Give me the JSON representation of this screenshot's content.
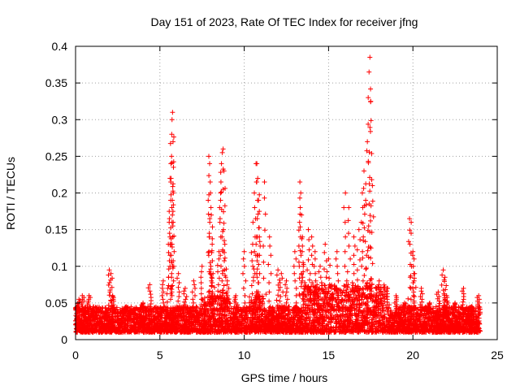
{
  "chart_data": {
    "type": "scatter",
    "title": "Day 151 of 2023, Rate Of TEC Index for receiver jfng",
    "xlabel": "GPS time / hours",
    "ylabel": "ROTI / TECUs",
    "xlim": [
      0,
      25
    ],
    "ylim": [
      0,
      0.4
    ],
    "x_ticks": [
      0,
      5,
      10,
      15,
      20,
      25
    ],
    "x_tick_labels": [
      "0",
      "5",
      "10",
      "15",
      "20",
      "25"
    ],
    "y_ticks": [
      0,
      0.05,
      0.1,
      0.15,
      0.2,
      0.25,
      0.3,
      0.35,
      0.4
    ],
    "y_tick_labels": [
      "0",
      "0.05",
      "0.1",
      "0.15",
      "0.2",
      "0.25",
      "0.3",
      "0.35",
      "0.4"
    ],
    "grid": true,
    "marker": "+",
    "marker_color": "#ff0000",
    "series": [
      {
        "name": "ROTI",
        "x": [
          0.1,
          0.2,
          0.3,
          0.4,
          0.5,
          0.8,
          1.0,
          2.0,
          2.1,
          2.2,
          3.0,
          4.0,
          4.4,
          5.2,
          5.5,
          5.55,
          5.6,
          5.65,
          5.7,
          5.72,
          5.75,
          5.78,
          5.8,
          6.1,
          6.5,
          7.0,
          7.5,
          7.9,
          7.95,
          8.0,
          8.05,
          8.1,
          8.15,
          8.5,
          8.6,
          8.65,
          8.7,
          8.75,
          8.8,
          8.85,
          9.0,
          9.5,
          10.0,
          10.5,
          10.6,
          10.7,
          10.75,
          10.8,
          10.85,
          10.9,
          11.2,
          11.5,
          12.0,
          12.2,
          12.5,
          13.0,
          13.3,
          13.35,
          13.4,
          13.45,
          13.5,
          13.8,
          14.0,
          14.2,
          14.5,
          14.8,
          15.0,
          15.5,
          16.0,
          16.2,
          16.5,
          16.8,
          17.0,
          17.1,
          17.2,
          17.3,
          17.35,
          17.4,
          17.45,
          17.5,
          17.6,
          18.0,
          18.5,
          19.0,
          19.5,
          19.8,
          19.9,
          20.0,
          20.1,
          20.5,
          21.0,
          21.5,
          21.8,
          21.9,
          22.0,
          22.5,
          23.0,
          23.5,
          23.9
        ],
        "y": [
          0.045,
          0.055,
          0.04,
          0.06,
          0.035,
          0.06,
          0.04,
          0.095,
          0.09,
          0.06,
          0.045,
          0.05,
          0.075,
          0.08,
          0.13,
          0.16,
          0.22,
          0.24,
          0.28,
          0.3,
          0.31,
          0.27,
          0.2,
          0.09,
          0.07,
          0.08,
          0.1,
          0.25,
          0.24,
          0.2,
          0.17,
          0.13,
          0.09,
          0.11,
          0.2,
          0.24,
          0.255,
          0.26,
          0.23,
          0.13,
          0.08,
          0.06,
          0.12,
          0.13,
          0.2,
          0.24,
          0.24,
          0.22,
          0.19,
          0.14,
          0.215,
          0.14,
          0.095,
          0.09,
          0.08,
          0.12,
          0.215,
          0.2,
          0.17,
          0.14,
          0.1,
          0.15,
          0.14,
          0.12,
          0.1,
          0.13,
          0.11,
          0.12,
          0.2,
          0.18,
          0.14,
          0.15,
          0.2,
          0.23,
          0.19,
          0.27,
          0.33,
          0.365,
          0.385,
          0.325,
          0.21,
          0.08,
          0.07,
          0.06,
          0.05,
          0.165,
          0.16,
          0.12,
          0.09,
          0.07,
          0.05,
          0.065,
          0.095,
          0.085,
          0.06,
          0.05,
          0.07,
          0.045,
          0.06
        ]
      }
    ],
    "baseline": {
      "description_free": true,
      "x_range": [
        0,
        24
      ],
      "y_low": 0.01,
      "y_high": 0.045
    }
  }
}
